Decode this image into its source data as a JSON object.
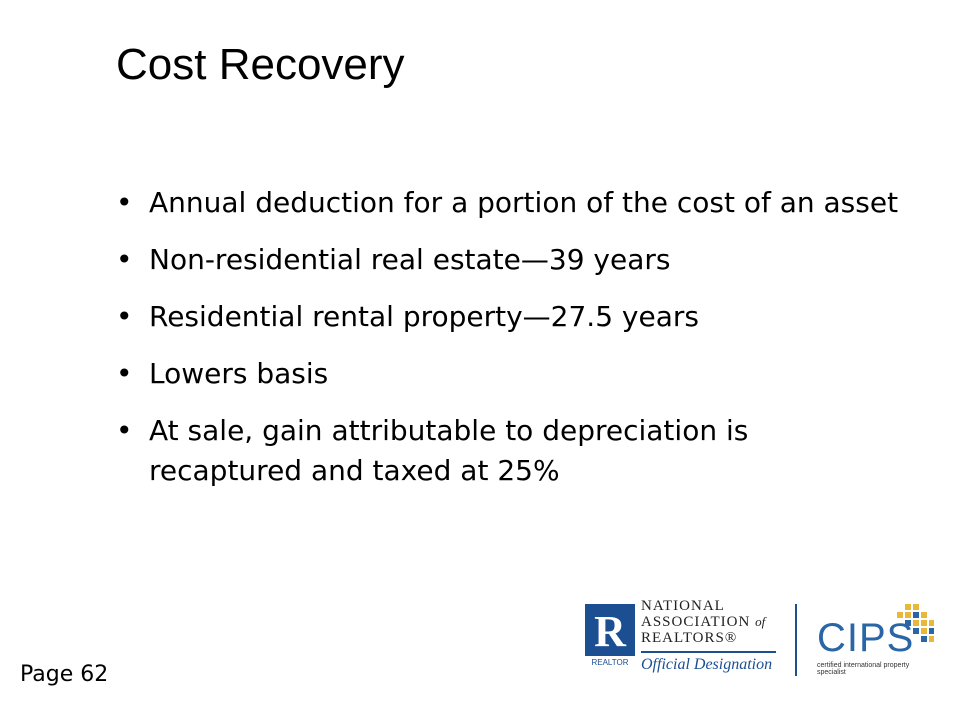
{
  "slide": {
    "title": "Cost Recovery",
    "bullets": [
      "Annual deduction for a portion of the cost of an asset",
      "Non-residential real estate—39 years",
      "Residential rental property—27.5 years",
      "Lowers basis",
      "At sale, gain attributable to depreciation is recaptured and taxed at 25%"
    ],
    "bullet_glyph": "•",
    "page_label": "Page 62"
  },
  "logos": {
    "realtor_letter": "R",
    "realtor_sub": "REALTOR",
    "nar_line1": "NATIONAL",
    "nar_line2": "ASSOCIATION",
    "nar_of": "of",
    "nar_line3": "REALTORS®",
    "official": "Official Designation",
    "cips": "CIPS",
    "cips_sub": "certified international property specialist"
  },
  "colors": {
    "brand_blue": "#1b4f92",
    "cips_blue": "#2a66a6",
    "cips_gold": "#e8b83a"
  }
}
